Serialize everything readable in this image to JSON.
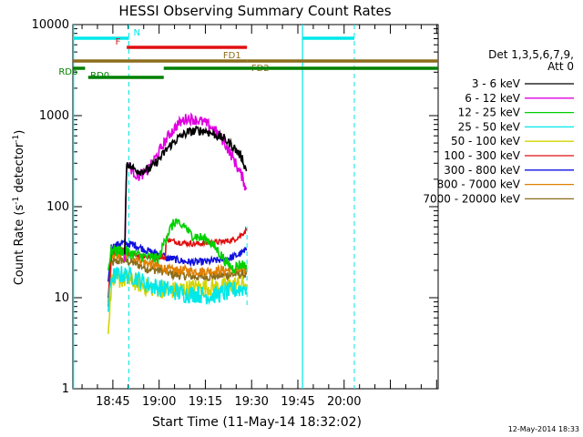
{
  "chart_data": {
    "type": "line",
    "title": "HESSI Observing Summary Count Rates",
    "xlabel": "Start Time (11-May-14 18:32:02)",
    "ylabel_main": "Count Rate (s",
    "ylabel_sup1": "-1",
    "ylabel_mid": " detector",
    "ylabel_sup2": "-1",
    "ylabel_end": ")",
    "yscale": "log",
    "ylim": [
      1,
      10000
    ],
    "xlim_minutes": [
      32.03,
      150.5
    ],
    "x_ticks": [
      {
        "label": "18:45",
        "minutes": 45
      },
      {
        "label": "19:00",
        "minutes": 60
      },
      {
        "label": "19:15",
        "minutes": 75
      },
      {
        "label": "19:30",
        "minutes": 90
      },
      {
        "label": "19:45",
        "minutes": 105
      },
      {
        "label": "20:00",
        "minutes": 120
      }
    ],
    "y_ticks": [
      {
        "label": "1",
        "value": 1
      },
      {
        "label": "10",
        "value": 10
      },
      {
        "label": "100",
        "value": 100
      },
      {
        "label": "1000",
        "value": 1000
      },
      {
        "label": "10000",
        "value": 10000
      }
    ],
    "legend_position": "right",
    "legend_header": [
      "Det 1,3,5,6,7,9,",
      "Att 0"
    ],
    "series": [
      {
        "name": "3 - 6 keV",
        "color": "#000000",
        "noise": 0.05,
        "points": [
          [
            48.8,
            30
          ],
          [
            49.5,
            310
          ],
          [
            51,
            270
          ],
          [
            54,
            245
          ],
          [
            57,
            260
          ],
          [
            60,
            330
          ],
          [
            63,
            450
          ],
          [
            66,
            560
          ],
          [
            69,
            650
          ],
          [
            72,
            690
          ],
          [
            75,
            680
          ],
          [
            78,
            620
          ],
          [
            81,
            560
          ],
          [
            84,
            460
          ],
          [
            87,
            340
          ],
          [
            88.3,
            245
          ]
        ]
      },
      {
        "name": "6 - 12 keV",
        "color": "#e000e0",
        "noise": 0.06,
        "points": [
          [
            48.8,
            25
          ],
          [
            49.5,
            300
          ],
          [
            51,
            260
          ],
          [
            53,
            215
          ],
          [
            56,
            240
          ],
          [
            60,
            400
          ],
          [
            63,
            600
          ],
          [
            66,
            800
          ],
          [
            69,
            940
          ],
          [
            72,
            900
          ],
          [
            75,
            830
          ],
          [
            78,
            700
          ],
          [
            81,
            520
          ],
          [
            84,
            340
          ],
          [
            87,
            210
          ],
          [
            88.3,
            155
          ]
        ]
      },
      {
        "name": "12 - 25 keV",
        "color": "#00d000",
        "noise": 0.06,
        "points": [
          [
            43.5,
            20
          ],
          [
            44.5,
            33
          ],
          [
            48,
            33
          ],
          [
            52,
            30
          ],
          [
            56,
            28
          ],
          [
            59,
            27
          ],
          [
            60,
            27
          ],
          [
            62,
            45
          ],
          [
            64,
            60
          ],
          [
            65.5,
            70
          ],
          [
            67,
            58
          ],
          [
            68,
            64
          ],
          [
            70,
            50
          ],
          [
            73,
            46
          ],
          [
            76,
            43
          ],
          [
            79,
            33
          ],
          [
            82,
            24
          ],
          [
            84,
            21
          ],
          [
            86,
            23
          ],
          [
            88.3,
            23
          ]
        ]
      },
      {
        "name": "25 - 50 keV",
        "color": "#00e8e8",
        "noise": 0.1,
        "points": [
          [
            43.5,
            7
          ],
          [
            44.5,
            17
          ],
          [
            48,
            18
          ],
          [
            52,
            17
          ],
          [
            56,
            14
          ],
          [
            60,
            13
          ],
          [
            64,
            12
          ],
          [
            68,
            11
          ],
          [
            72,
            11
          ],
          [
            76,
            10.5
          ],
          [
            80,
            11
          ],
          [
            84,
            12
          ],
          [
            88.3,
            13
          ]
        ]
      },
      {
        "name": "50 - 100 keV",
        "color": "#d4d400",
        "noise": 0.1,
        "points": [
          [
            43.5,
            4
          ],
          [
            44.5,
            15
          ],
          [
            48,
            16
          ],
          [
            52,
            15
          ],
          [
            56,
            13
          ],
          [
            60,
            12.5
          ],
          [
            64,
            12
          ],
          [
            68,
            12.5
          ],
          [
            72,
            13
          ],
          [
            76,
            13
          ],
          [
            80,
            13
          ],
          [
            84,
            14
          ],
          [
            88.3,
            14
          ]
        ]
      },
      {
        "name": "100 - 300 keV",
        "color": "#e01010",
        "noise": 0.03,
        "points": [
          [
            43.5,
            10
          ],
          [
            44.5,
            31
          ],
          [
            48,
            33
          ],
          [
            52,
            30
          ],
          [
            56,
            28
          ],
          [
            60,
            28
          ],
          [
            62,
            27.5
          ],
          [
            62.3,
            45
          ],
          [
            64,
            42
          ],
          [
            68,
            40
          ],
          [
            72,
            39
          ],
          [
            76,
            40
          ],
          [
            80,
            41
          ],
          [
            84,
            43
          ],
          [
            86,
            47
          ],
          [
            88.3,
            55
          ]
        ]
      },
      {
        "name": "300 - 800 keV",
        "color": "#1010e0",
        "noise": 0.04,
        "points": [
          [
            43.5,
            15
          ],
          [
            44.5,
            36
          ],
          [
            48,
            40
          ],
          [
            52,
            38
          ],
          [
            56,
            33
          ],
          [
            60,
            30
          ],
          [
            62,
            28.5
          ],
          [
            62.3,
            27
          ],
          [
            64,
            27
          ],
          [
            68,
            25
          ],
          [
            72,
            24.5
          ],
          [
            76,
            25
          ],
          [
            80,
            26
          ],
          [
            84,
            28
          ],
          [
            86,
            30
          ],
          [
            88.3,
            33
          ]
        ]
      },
      {
        "name": "800 - 7000 keV",
        "color": "#e08000",
        "noise": 0.05,
        "points": [
          [
            43.5,
            9
          ],
          [
            44.5,
            28
          ],
          [
            48,
            30
          ],
          [
            52,
            28
          ],
          [
            56,
            24
          ],
          [
            60,
            22
          ],
          [
            62,
            21
          ],
          [
            64,
            20
          ],
          [
            68,
            20
          ],
          [
            72,
            19.5
          ],
          [
            76,
            19.5
          ],
          [
            80,
            20
          ],
          [
            84,
            20
          ],
          [
            88.3,
            20
          ]
        ]
      },
      {
        "name": "7000 - 20000 keV",
        "color": "#8b6d1c",
        "noise": 0.05,
        "points": [
          [
            43.5,
            8
          ],
          [
            44.5,
            24
          ],
          [
            48,
            26
          ],
          [
            52,
            24
          ],
          [
            56,
            21
          ],
          [
            60,
            20
          ],
          [
            62,
            19.5
          ],
          [
            64,
            18
          ],
          [
            68,
            17.5
          ],
          [
            72,
            17
          ],
          [
            76,
            17
          ],
          [
            80,
            17.5
          ],
          [
            84,
            18
          ],
          [
            88.3,
            18
          ]
        ]
      }
    ],
    "flag_bars": [
      {
        "label": "N",
        "color": "#00e8e8",
        "segments": [
          [
            32.03,
            50.2
          ],
          [
            106.5,
            123.3
          ]
        ],
        "level": 0,
        "label_at": 50.8,
        "label_side": "right"
      },
      {
        "label": "F",
        "color": "#e01010",
        "segments": [
          [
            49.5,
            88.5
          ]
        ],
        "level": 1,
        "label_at": 48.4,
        "label_side": "left"
      },
      {
        "label": "FD1",
        "color": "#8b6d1c",
        "segments": [
          [
            32.03,
            88.5
          ]
        ],
        "level": 2.5,
        "label_at": 87.5,
        "label_side": "left"
      },
      {
        "label": "FD2",
        "color": "#8b6d1c",
        "segments": [
          [
            88.5,
            150.5
          ]
        ],
        "level": 2.5,
        "label_at": 89.0,
        "label_side": "right-below"
      },
      {
        "label": "RD0",
        "color": "#008000",
        "segments": [
          [
            32.03,
            36
          ],
          [
            61.5,
            150.5
          ]
        ],
        "level": 3.3,
        "label_at": 36.8,
        "label_side": "right-below"
      },
      {
        "label": "RD6",
        "color": "#008000",
        "segments": [
          [
            37,
            61.5
          ]
        ],
        "level": 4.3,
        "label_at": 34.5,
        "label_side": "left"
      }
    ],
    "vlines": [
      {
        "minutes": 32.25,
        "color": "#00e8e8",
        "style": "solid"
      },
      {
        "minutes": 50.2,
        "color": "#00e8e8",
        "style": "dashed"
      },
      {
        "minutes": 106.5,
        "color": "#00e8e8",
        "style": "solid"
      },
      {
        "minutes": 123.3,
        "color": "#00e8e8",
        "style": "dashed"
      },
      {
        "minutes": 88.5,
        "color": "#00e8e8",
        "style": "dashed"
      }
    ]
  },
  "footer": {
    "timestamp": "12-May-2014 18:33"
  }
}
